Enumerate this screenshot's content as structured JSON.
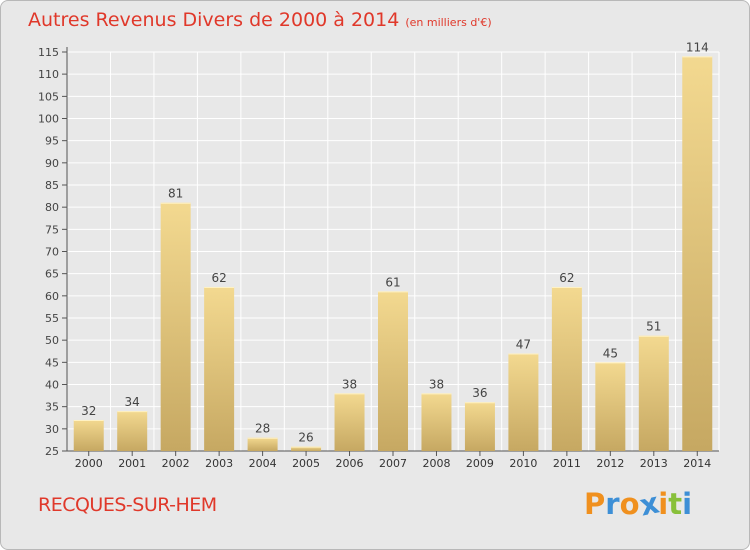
{
  "chart_data": {
    "type": "bar",
    "title": "Autres Revenus Divers de 2000 à 2014",
    "subtitle": "(en milliers d'€)",
    "categories": [
      "2000",
      "2001",
      "2002",
      "2003",
      "2004",
      "2005",
      "2006",
      "2007",
      "2008",
      "2009",
      "2010",
      "2011",
      "2012",
      "2013",
      "2014"
    ],
    "values": [
      32,
      34,
      81,
      62,
      28,
      26,
      38,
      61,
      38,
      36,
      47,
      62,
      45,
      51,
      114
    ],
    "ylim": [
      25,
      115
    ],
    "yticks": [
      25,
      30,
      35,
      40,
      45,
      50,
      55,
      60,
      65,
      70,
      75,
      80,
      85,
      90,
      95,
      100,
      105,
      110,
      115
    ],
    "grid": true,
    "legend": "none"
  },
  "footer": {
    "city": "RECQUES-SUR-HEM",
    "logo_letters": [
      "P",
      "r",
      "o",
      "x",
      "i",
      "t",
      "i"
    ]
  },
  "colors": {
    "title": "#e0382a",
    "bar_light": "#f3d990",
    "bar_dark": "#c6a862",
    "grid": "#ffffff",
    "background": "#e8e8e8",
    "logo": [
      "#f0901e",
      "#3d8fd6",
      "#f0901e",
      "#3d8fd6",
      "#f0901e",
      "#88c03a",
      "#3d8fd6"
    ]
  }
}
